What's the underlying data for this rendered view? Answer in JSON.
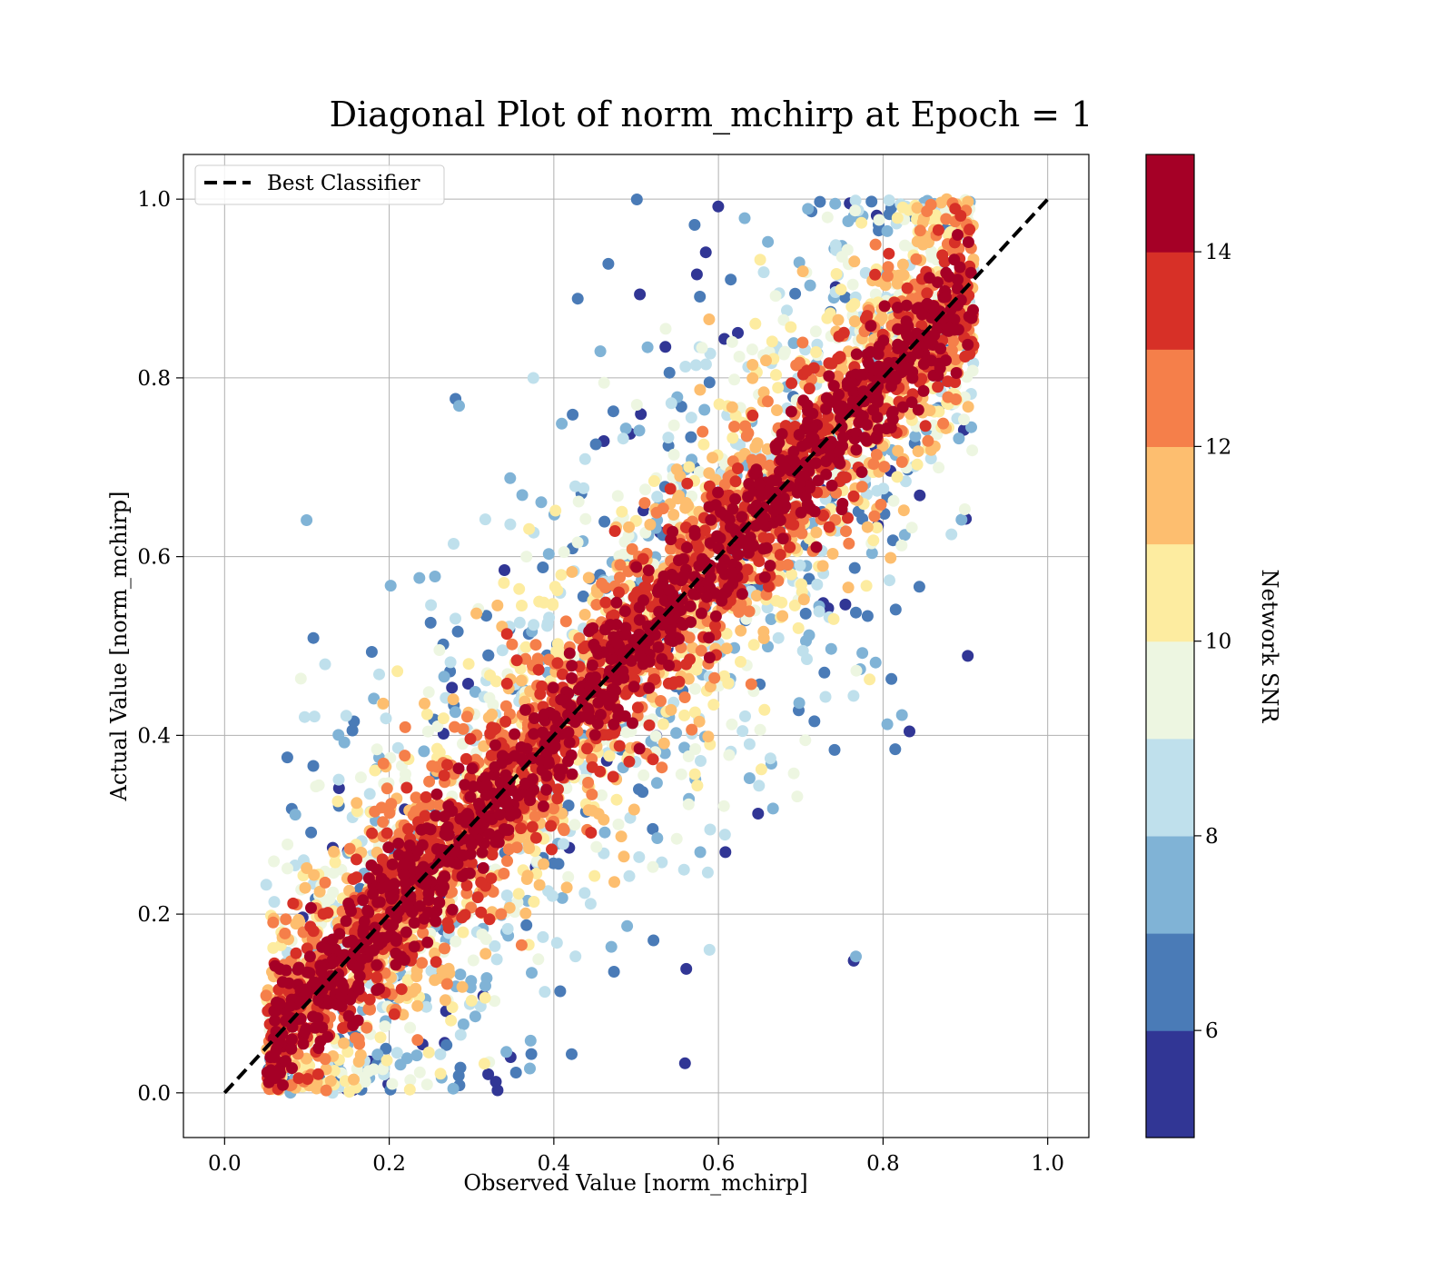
{
  "chart_data": {
    "type": "scatter",
    "title": "Diagonal Plot of norm_mchirp at Epoch = 1",
    "xlabel": "Observed Value [norm_mchirp]",
    "ylabel": "Actual Value [norm_mchirp]",
    "xlim": [
      -0.05,
      1.05
    ],
    "ylim": [
      -0.05,
      1.05
    ],
    "xticks": [
      0.0,
      0.2,
      0.4,
      0.6,
      0.8,
      1.0
    ],
    "yticks": [
      0.0,
      0.2,
      0.4,
      0.6,
      0.8,
      1.0
    ],
    "xtick_labels": [
      "0.0",
      "0.2",
      "0.4",
      "0.6",
      "0.8",
      "1.0"
    ],
    "ytick_labels": [
      "0.0",
      "0.2",
      "0.4",
      "0.6",
      "0.8",
      "1.0"
    ],
    "grid": true,
    "legend": {
      "placement": "top-left",
      "entries": [
        "Best Classifier"
      ]
    },
    "reference_line": {
      "name": "Best Classifier",
      "style": "dashed",
      "color": "#000000",
      "x": [
        0.0,
        1.0
      ],
      "y": [
        0.0,
        1.0
      ]
    },
    "point_distribution": {
      "x_range": [
        0.05,
        0.91
      ],
      "y_range": [
        0.0,
        1.0
      ],
      "center": "y = x",
      "note": "dense high-SNR core along the diagonal, low-SNR points scattered farther from it"
    },
    "colorbar": {
      "label": "Network SNR",
      "range": [
        4.9,
        15.0
      ],
      "ticks": [
        6,
        8,
        10,
        12,
        14
      ],
      "tick_labels": [
        "6",
        "8",
        "10",
        "12",
        "14"
      ],
      "bins": [
        {
          "from": 4.9,
          "to": 6.0,
          "color": "#313695"
        },
        {
          "from": 6.0,
          "to": 7.0,
          "color": "#4a7bb7"
        },
        {
          "from": 7.0,
          "to": 8.0,
          "color": "#80b3d6"
        },
        {
          "from": 8.0,
          "to": 9.0,
          "color": "#bfe0ec"
        },
        {
          "from": 9.0,
          "to": 10.0,
          "color": "#edf6e1"
        },
        {
          "from": 10.0,
          "to": 11.0,
          "color": "#fdeca0"
        },
        {
          "from": 11.0,
          "to": 12.0,
          "color": "#fdbe6f"
        },
        {
          "from": 12.0,
          "to": 13.0,
          "color": "#f57f4a"
        },
        {
          "from": 13.0,
          "to": 14.0,
          "color": "#d73027"
        },
        {
          "from": 14.0,
          "to": 15.0,
          "color": "#a50026"
        }
      ]
    }
  }
}
